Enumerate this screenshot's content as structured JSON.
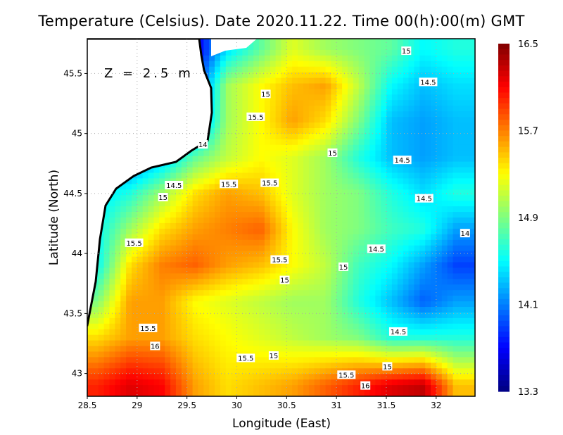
{
  "chart_data": {
    "type": "heatmap",
    "title": "Temperature (Celsius). Date 2020.11.22. Time 00(h):00(m)  GMT",
    "annotation": "Z = 2.5 m",
    "xlabel": "Longitude (East)",
    "ylabel": "Latitude (North)",
    "xlim": [
      28.5,
      32.39
    ],
    "ylim": [
      42.81,
      45.79
    ],
    "xticks": [
      "28.5",
      "29",
      "29.5",
      "30",
      "30.5",
      "31",
      "31.5",
      "32"
    ],
    "yticks": [
      "43",
      "43.5",
      "44",
      "44.5",
      "45",
      "45.5"
    ],
    "grid": true,
    "colorbar": {
      "min": 13.3,
      "max": 16.5,
      "ticks": [
        "16.5",
        "15.7",
        "14.9",
        "14.1",
        "13.3"
      ],
      "colormap": "jet",
      "placement": "right"
    },
    "land_color": "#ffffff",
    "lon": [
      28.6,
      28.93,
      29.25,
      29.58,
      29.9,
      30.24,
      30.56,
      30.89,
      31.22,
      31.55,
      31.87,
      32.2
    ],
    "lat": [
      45.7,
      45.4,
      45.1,
      44.8,
      44.5,
      44.2,
      43.9,
      43.6,
      43.3,
      42.9
    ],
    "z": [
      [
        14.2,
        14.2,
        14.0,
        13.6,
        14.4,
        14.8,
        15.2,
        15.0,
        14.9,
        14.8,
        14.5,
        14.6
      ],
      [
        14.2,
        14.2,
        14.0,
        13.8,
        15.0,
        15.3,
        15.5,
        15.6,
        15.1,
        14.5,
        14.3,
        14.4
      ],
      [
        14.2,
        14.2,
        14.0,
        14.0,
        15.0,
        15.3,
        15.6,
        15.4,
        14.9,
        14.3,
        14.2,
        14.3
      ],
      [
        14.2,
        14.0,
        14.3,
        14.8,
        15.1,
        15.3,
        15.2,
        15.0,
        14.6,
        14.3,
        14.2,
        14.3
      ],
      [
        14.4,
        14.6,
        15.0,
        15.4,
        15.6,
        15.5,
        15.2,
        15.0,
        14.9,
        14.6,
        14.4,
        14.6
      ],
      [
        14.5,
        15.0,
        15.4,
        15.6,
        15.7,
        15.8,
        15.3,
        15.0,
        14.9,
        14.7,
        14.6,
        14.2
      ],
      [
        14.5,
        15.4,
        15.7,
        15.8,
        15.6,
        15.5,
        15.3,
        15.1,
        14.7,
        14.5,
        14.2,
        13.9
      ],
      [
        14.9,
        15.6,
        15.6,
        15.3,
        15.2,
        15.1,
        15.0,
        15.0,
        14.6,
        14.3,
        14.0,
        14.2
      ],
      [
        15.4,
        15.6,
        15.6,
        15.4,
        15.3,
        15.2,
        15.1,
        15.0,
        14.9,
        14.6,
        14.6,
        14.6
      ],
      [
        16.0,
        16.2,
        16.1,
        15.6,
        15.4,
        15.5,
        15.6,
        15.8,
        16.0,
        16.2,
        16.3,
        15.5
      ]
    ],
    "contour_labels": [
      {
        "text": "15",
        "lon": 31.7,
        "lat": 45.69
      },
      {
        "text": "14.5",
        "lon": 31.92,
        "lat": 45.43
      },
      {
        "text": "15",
        "lon": 30.29,
        "lat": 45.33
      },
      {
        "text": "15.5",
        "lon": 30.19,
        "lat": 45.14
      },
      {
        "text": "14",
        "lon": 29.66,
        "lat": 44.91
      },
      {
        "text": "15",
        "lon": 30.96,
        "lat": 44.84
      },
      {
        "text": "14.5",
        "lon": 31.66,
        "lat": 44.78
      },
      {
        "text": "14.5",
        "lon": 29.37,
        "lat": 44.57
      },
      {
        "text": "15.5",
        "lon": 29.92,
        "lat": 44.58
      },
      {
        "text": "15.5",
        "lon": 30.33,
        "lat": 44.59
      },
      {
        "text": "15",
        "lon": 29.26,
        "lat": 44.47
      },
      {
        "text": "14.5",
        "lon": 31.88,
        "lat": 44.46
      },
      {
        "text": "14",
        "lon": 32.29,
        "lat": 44.17
      },
      {
        "text": "15.5",
        "lon": 28.97,
        "lat": 44.09
      },
      {
        "text": "14.5",
        "lon": 31.4,
        "lat": 44.04
      },
      {
        "text": "15.5",
        "lon": 30.43,
        "lat": 43.95
      },
      {
        "text": "15",
        "lon": 31.07,
        "lat": 43.89
      },
      {
        "text": "15",
        "lon": 30.48,
        "lat": 43.78
      },
      {
        "text": "14.5",
        "lon": 31.62,
        "lat": 43.35
      },
      {
        "text": "15.5",
        "lon": 29.11,
        "lat": 43.38
      },
      {
        "text": "16",
        "lon": 29.18,
        "lat": 43.23
      },
      {
        "text": "15.5",
        "lon": 30.09,
        "lat": 43.13
      },
      {
        "text": "15",
        "lon": 30.37,
        "lat": 43.15
      },
      {
        "text": "15",
        "lon": 31.51,
        "lat": 43.06
      },
      {
        "text": "15.5",
        "lon": 31.1,
        "lat": 42.99
      },
      {
        "text": "16",
        "lon": 31.29,
        "lat": 42.9
      }
    ]
  }
}
